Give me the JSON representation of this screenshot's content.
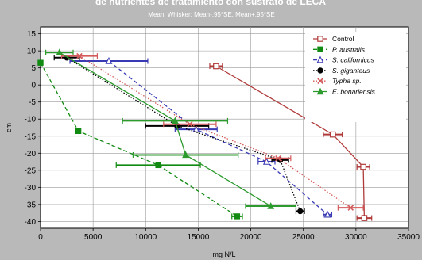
{
  "chart_data": {
    "type": "line",
    "title": "de nutrientes de tratamiento con sustrato de LECA",
    "subtitle": "Mean; Whisker: Mean-,95*SE, Mean+,95*SE",
    "xlabel": "mg N/L",
    "ylabel": "cm",
    "xlim": [
      0,
      35000
    ],
    "ylim": [
      -42,
      17
    ],
    "x_ticks": [
      "0",
      "5000",
      "10000",
      "15000",
      "20000",
      "25000",
      "30000",
      "35000"
    ],
    "y_ticks": [
      "15",
      "10",
      "5",
      "0",
      "-5",
      "-10",
      "-15",
      "-20",
      "-25",
      "-30",
      "-35",
      "-40"
    ],
    "grid": true,
    "legend_position": "top-right",
    "series": [
      {
        "name": "Control",
        "color": "#b03a3a",
        "marker": "square-open",
        "dash": "solid",
        "points": [
          {
            "x": 16700,
            "y": 5.5,
            "xerr": 600
          },
          {
            "x": 27800,
            "y": -14.5,
            "xerr": 900
          },
          {
            "x": 30700,
            "y": -24,
            "xerr": 600
          },
          {
            "x": 30800,
            "y": -39,
            "xerr": 700
          }
        ]
      },
      {
        "name": "P. australis",
        "color": "#118a11",
        "marker": "square-filled",
        "dash": "dashed",
        "points": [
          {
            "x": 0,
            "y": 6.5,
            "xerr": 0
          },
          {
            "x": 3600,
            "y": -13.5,
            "xerr": 0
          },
          {
            "x": 11200,
            "y": -23.5,
            "xerr": 4000
          },
          {
            "x": 18700,
            "y": -38.5,
            "xerr": 500
          }
        ]
      },
      {
        "name": "S. californicus",
        "color": "#3a3ab5",
        "marker": "triangle-open",
        "dash": "dashed",
        "points": [
          {
            "x": 6500,
            "y": 7,
            "xerr": 3700
          },
          {
            "x": 14800,
            "y": -13,
            "xerr": 2000
          },
          {
            "x": 21500,
            "y": -22.5,
            "xerr": 800
          },
          {
            "x": 27300,
            "y": -38,
            "xerr": 400
          }
        ]
      },
      {
        "name": "S. giganteus",
        "color": "#000000",
        "marker": "circle-filled",
        "dash": "dotted",
        "points": [
          {
            "x": 2500,
            "y": 8,
            "xerr": 1200
          },
          {
            "x": 13000,
            "y": -12,
            "xerr": 3000
          },
          {
            "x": 22800,
            "y": -22,
            "xerr": 800
          },
          {
            "x": 24700,
            "y": -37,
            "xerr": 400
          }
        ]
      },
      {
        "name": "Typha sp.",
        "color": "#d45a5a",
        "marker": "x",
        "dash": "dotted",
        "points": [
          {
            "x": 3700,
            "y": 8.5,
            "xerr": 1700
          },
          {
            "x": 14200,
            "y": -11.5,
            "xerr": 2500
          },
          {
            "x": 22600,
            "y": -21.5,
            "xerr": 1200
          },
          {
            "x": 29500,
            "y": -36,
            "xerr": 1200
          }
        ]
      },
      {
        "name": "E. bonariensis",
        "color": "#2c9a2c",
        "marker": "triangle-filled",
        "dash": "solid",
        "points": [
          {
            "x": 1800,
            "y": 9.5,
            "xerr": 1300
          },
          {
            "x": 12800,
            "y": -10.5,
            "xerr": 5000
          },
          {
            "x": 13800,
            "y": -20.5,
            "xerr": 5000
          },
          {
            "x": 21900,
            "y": -35.5,
            "xerr": 2400
          }
        ]
      }
    ]
  }
}
